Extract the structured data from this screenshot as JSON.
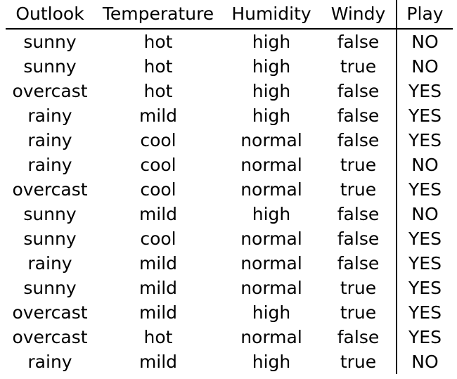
{
  "table": {
    "headers": [
      "Outlook",
      "Temperature",
      "Humidity",
      "Windy",
      "Play"
    ],
    "rows": [
      [
        "sunny",
        "hot",
        "high",
        "false",
        "NO"
      ],
      [
        "sunny",
        "hot",
        "high",
        "true",
        "NO"
      ],
      [
        "overcast",
        "hot",
        "high",
        "false",
        "YES"
      ],
      [
        "rainy",
        "mild",
        "high",
        "false",
        "YES"
      ],
      [
        "rainy",
        "cool",
        "normal",
        "false",
        "YES"
      ],
      [
        "rainy",
        "cool",
        "normal",
        "true",
        "NO"
      ],
      [
        "overcast",
        "cool",
        "normal",
        "true",
        "YES"
      ],
      [
        "sunny",
        "mild",
        "high",
        "false",
        "NO"
      ],
      [
        "sunny",
        "cool",
        "normal",
        "false",
        "YES"
      ],
      [
        "rainy",
        "mild",
        "normal",
        "false",
        "YES"
      ],
      [
        "sunny",
        "mild",
        "normal",
        "true",
        "YES"
      ],
      [
        "overcast",
        "mild",
        "high",
        "true",
        "YES"
      ],
      [
        "overcast",
        "hot",
        "normal",
        "false",
        "YES"
      ],
      [
        "rainy",
        "mild",
        "high",
        "true",
        "NO"
      ]
    ]
  }
}
